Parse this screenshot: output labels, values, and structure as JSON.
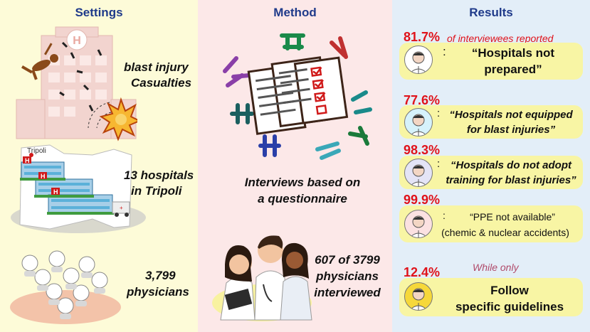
{
  "settings": {
    "heading": "Settings",
    "blast_text_1": "blast injury",
    "blast_text_2": "Casualties",
    "map_label": "Tripoli",
    "hospitals_text_1": "13 hospitals",
    "hospitals_text_2": "in Tripoli",
    "physicians_text_1": "3,799",
    "physicians_text_2": "physicians"
  },
  "method": {
    "heading": "Method",
    "interviews_text_1": "Interviews based on",
    "interviews_text_2": "a questionnaire",
    "interviewed_text_1": "607 of 3799",
    "interviewed_text_2": "physicians",
    "interviewed_text_3": "interviewed"
  },
  "results": {
    "heading": "Results",
    "items": [
      {
        "percent": "81.7%",
        "suffix": "of interviewees reported",
        "colon": ":",
        "line1": "“Hospitals not",
        "line2": "prepared”"
      },
      {
        "percent": "77.6%",
        "colon": ":",
        "line1": "“Hospitals not equipped",
        "line2": "for blast injuries”"
      },
      {
        "percent": "98.3%",
        "colon": ":",
        "line1": "“Hospitals do not adopt",
        "line2": "training for blast injuries”"
      },
      {
        "percent": "99.9%",
        "colon": ":",
        "line1": "“PPE not available”",
        "line2": "(chemic & nuclear accidents)"
      },
      {
        "percent": "12.4%",
        "prefix": "While only",
        "line1": "Follow",
        "line2": "specific guidelines"
      }
    ]
  },
  "colors": {
    "settings_bg": "#fdfbd8",
    "method_bg": "#fce8e8",
    "results_bg": "#e3eef8",
    "heading": "#1f3a8a",
    "percent": "#e0121a",
    "result_box": "#f8f5a4"
  }
}
